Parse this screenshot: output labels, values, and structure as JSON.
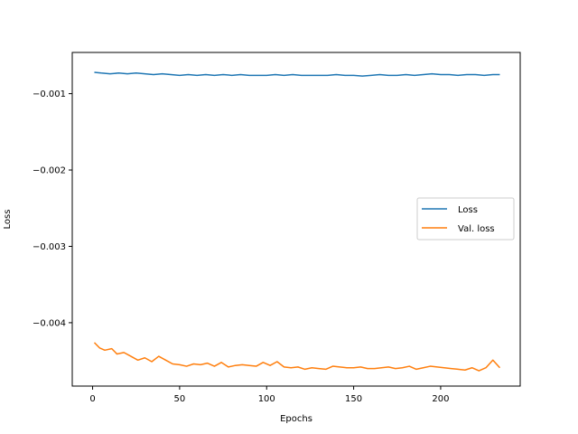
{
  "chart_data": {
    "type": "line",
    "title": "",
    "xlabel": "Epochs",
    "ylabel": "Loss",
    "xlim": [
      -11.7,
      245.7
    ],
    "ylim": [
      -0.00483,
      -0.00046
    ],
    "xticks": [
      0,
      50,
      100,
      150,
      200
    ],
    "xtick_labels": [
      "0",
      "50",
      "100",
      "150",
      "200"
    ],
    "yticks": [
      -0.001,
      -0.002,
      -0.003,
      -0.004
    ],
    "ytick_labels": [
      "−0.001",
      "−0.002",
      "−0.003",
      "−0.004"
    ],
    "grid": false,
    "legend_position": "center-right",
    "series": [
      {
        "name": "Loss",
        "color": "#1f77b4",
        "x": [
          1,
          5,
          10,
          15,
          20,
          25,
          30,
          35,
          40,
          45,
          50,
          55,
          60,
          65,
          70,
          75,
          80,
          85,
          90,
          95,
          100,
          105,
          110,
          115,
          120,
          125,
          130,
          135,
          140,
          145,
          150,
          155,
          160,
          165,
          170,
          175,
          180,
          185,
          190,
          195,
          200,
          205,
          210,
          215,
          220,
          225,
          230,
          234
        ],
        "y": [
          -0.00072,
          -0.00073,
          -0.00074,
          -0.00073,
          -0.00074,
          -0.00073,
          -0.00074,
          -0.00075,
          -0.00074,
          -0.00075,
          -0.00076,
          -0.00075,
          -0.00076,
          -0.00075,
          -0.00076,
          -0.00075,
          -0.00076,
          -0.00075,
          -0.00076,
          -0.00076,
          -0.00076,
          -0.00075,
          -0.00076,
          -0.00075,
          -0.00076,
          -0.00076,
          -0.00076,
          -0.00076,
          -0.00075,
          -0.00076,
          -0.00076,
          -0.00077,
          -0.00076,
          -0.00075,
          -0.00076,
          -0.00076,
          -0.00075,
          -0.00076,
          -0.00075,
          -0.00074,
          -0.00075,
          -0.00075,
          -0.00076,
          -0.00075,
          -0.00075,
          -0.00076,
          -0.00075,
          -0.00075
        ]
      },
      {
        "name": "Val. loss",
        "color": "#ff7f0e",
        "x": [
          1,
          4,
          7,
          11,
          14,
          18,
          22,
          26,
          30,
          34,
          38,
          42,
          46,
          50,
          54,
          58,
          62,
          66,
          70,
          74,
          78,
          82,
          86,
          90,
          94,
          98,
          102,
          106,
          110,
          114,
          118,
          122,
          126,
          130,
          134,
          138,
          142,
          146,
          150,
          154,
          158,
          162,
          166,
          170,
          174,
          178,
          182,
          186,
          190,
          194,
          198,
          202,
          206,
          210,
          214,
          218,
          222,
          226,
          230,
          234
        ],
        "y": [
          -0.00426,
          -0.00433,
          -0.00436,
          -0.00434,
          -0.00441,
          -0.00439,
          -0.00444,
          -0.00449,
          -0.00446,
          -0.00451,
          -0.00444,
          -0.00449,
          -0.00454,
          -0.00455,
          -0.00457,
          -0.00454,
          -0.00455,
          -0.00453,
          -0.00457,
          -0.00452,
          -0.00458,
          -0.00456,
          -0.00455,
          -0.00456,
          -0.00457,
          -0.00452,
          -0.00456,
          -0.00451,
          -0.00458,
          -0.00459,
          -0.00458,
          -0.00461,
          -0.00459,
          -0.0046,
          -0.00461,
          -0.00457,
          -0.00458,
          -0.00459,
          -0.00459,
          -0.00458,
          -0.0046,
          -0.0046,
          -0.00459,
          -0.00458,
          -0.0046,
          -0.00459,
          -0.00457,
          -0.00461,
          -0.00459,
          -0.00457,
          -0.00458,
          -0.00459,
          -0.0046,
          -0.00461,
          -0.00462,
          -0.00459,
          -0.00463,
          -0.00459,
          -0.00449,
          -0.00459
        ]
      }
    ]
  }
}
